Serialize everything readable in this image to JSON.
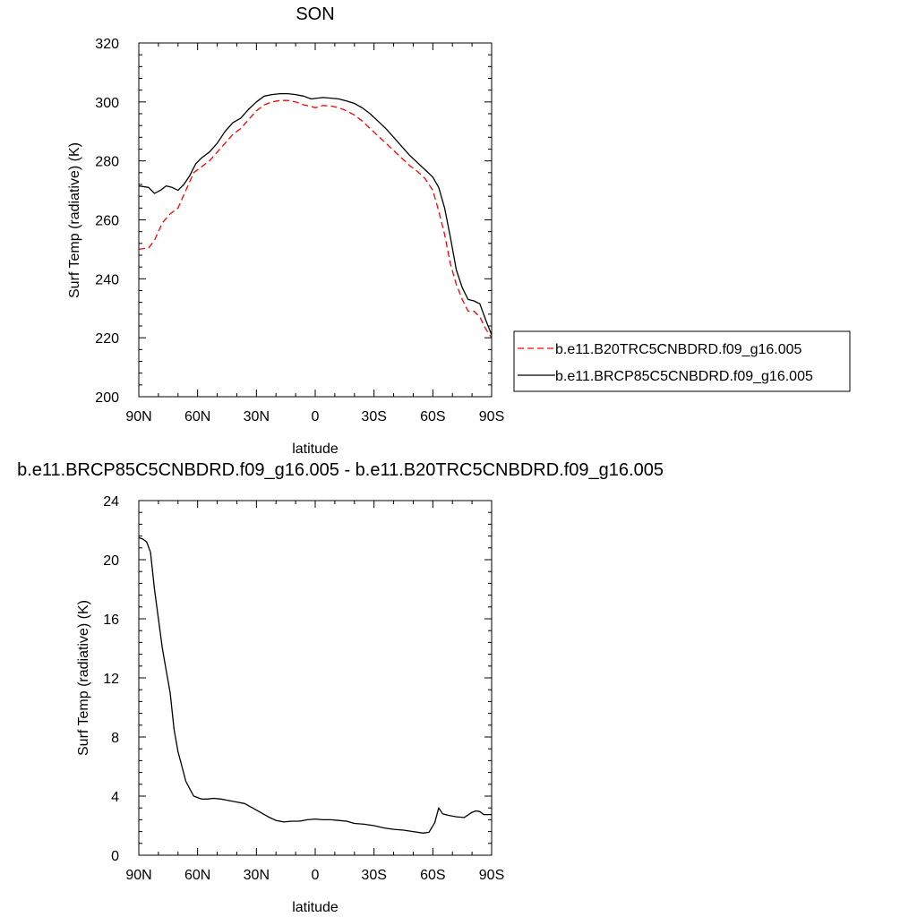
{
  "chart_data": [
    {
      "type": "line",
      "title": "SON",
      "xlabel": "latitude",
      "ylabel": "Surf Temp (radiative) (K)",
      "xlim": [
        90,
        -90
      ],
      "ylim": [
        200,
        320
      ],
      "xticks": [
        90,
        60,
        30,
        0,
        -30,
        -60,
        -90
      ],
      "xtick_labels": [
        "90N",
        "60N",
        "30N",
        "0",
        "30S",
        "60S",
        "90S"
      ],
      "yticks": [
        200,
        220,
        240,
        260,
        280,
        300,
        320
      ],
      "ytick_labels": [
        "200",
        "220",
        "240",
        "260",
        "280",
        "300",
        "320"
      ],
      "grid": false,
      "legend_position": "right",
      "series": [
        {
          "name": "b.e11.B20TRC5CNBDRD.f09_g16.005",
          "color": "#ff0000",
          "dash": "dashed",
          "x": [
            90,
            85,
            82,
            78,
            74,
            70,
            66,
            62,
            58,
            54,
            50,
            46,
            42,
            38,
            34,
            30,
            26,
            22,
            18,
            14,
            10,
            6,
            2,
            0,
            -4,
            -8,
            -12,
            -16,
            -20,
            -24,
            -28,
            -32,
            -36,
            -40,
            -44,
            -48,
            -52,
            -56,
            -60,
            -63,
            -66,
            -69,
            -72,
            -75,
            -78,
            -81,
            -84,
            -87,
            -90
          ],
          "y": [
            250,
            250.5,
            253,
            259,
            262,
            264,
            270,
            276,
            278,
            280,
            283,
            286,
            289,
            291,
            294,
            297,
            299,
            300,
            300.5,
            300.5,
            300,
            299,
            298.5,
            298,
            298.8,
            298.6,
            298,
            297,
            295.5,
            293.5,
            291,
            288.5,
            286,
            283.5,
            281,
            278.5,
            276.5,
            274,
            270,
            263,
            255,
            245,
            238,
            233,
            229,
            229,
            227,
            223,
            220
          ]
        },
        {
          "name": "b.e11.BRCP85C5CNBDRD.f09_g16.005",
          "color": "#000000",
          "dash": "solid",
          "x": [
            90,
            85,
            82,
            79,
            76,
            73,
            70,
            67,
            64,
            61,
            58,
            54,
            50,
            46,
            42,
            38,
            34,
            30,
            26,
            22,
            18,
            14,
            10,
            6,
            2,
            0,
            -4,
            -8,
            -12,
            -16,
            -20,
            -24,
            -28,
            -32,
            -36,
            -40,
            -44,
            -48,
            -52,
            -56,
            -60,
            -63,
            -66,
            -69,
            -72,
            -75,
            -78,
            -81,
            -84,
            -87,
            -90
          ],
          "y": [
            271.5,
            271,
            269,
            270,
            271.5,
            271,
            270,
            272,
            275,
            279,
            281,
            283,
            286,
            290,
            293,
            294.5,
            297.5,
            300,
            302,
            302.5,
            302.8,
            302.8,
            302.5,
            302,
            301,
            301.2,
            301.5,
            301.3,
            301,
            300.3,
            299.5,
            298,
            296,
            293.5,
            291,
            288,
            285,
            282,
            279.5,
            277,
            274.5,
            271,
            264,
            254,
            243,
            237,
            233,
            232.5,
            231.5,
            226,
            221
          ]
        }
      ]
    },
    {
      "type": "line",
      "title": "b.e11.BRCP85C5CNBDRD.f09_g16.005 - b.e11.B20TRC5CNBDRD.f09_g16.005",
      "xlabel": "latitude",
      "ylabel": "Surf Temp (radiative) (K)",
      "xlim": [
        90,
        -90
      ],
      "ylim": [
        0,
        24
      ],
      "xticks": [
        90,
        60,
        30,
        0,
        -30,
        -60,
        -90
      ],
      "xtick_labels": [
        "90N",
        "60N",
        "30N",
        "0",
        "30S",
        "60S",
        "90S"
      ],
      "yticks": [
        0,
        4,
        8,
        12,
        16,
        20,
        24
      ],
      "ytick_labels": [
        "0",
        "4",
        "8",
        "12",
        "16",
        "20",
        "24"
      ],
      "grid": false,
      "series": [
        {
          "color": "#000000",
          "dash": "solid",
          "x": [
            90,
            88,
            86,
            84,
            82,
            80,
            78,
            76,
            74,
            72,
            70,
            68,
            66,
            64,
            62,
            60,
            58,
            55,
            52,
            48,
            44,
            40,
            36,
            32,
            28,
            24,
            20,
            16,
            12,
            8,
            4,
            0,
            -4,
            -8,
            -12,
            -16,
            -20,
            -25,
            -30,
            -35,
            -40,
            -45,
            -50,
            -55,
            -58,
            -61,
            -63,
            -65,
            -68,
            -72,
            -76,
            -80,
            -82,
            -84,
            -86,
            -88,
            -90
          ],
          "y": [
            21.5,
            21.4,
            21.2,
            20.5,
            18,
            16,
            14,
            12.5,
            11,
            8.5,
            7,
            6,
            5,
            4.5,
            4,
            3.9,
            3.8,
            3.8,
            3.85,
            3.8,
            3.7,
            3.6,
            3.5,
            3.2,
            2.9,
            2.6,
            2.35,
            2.25,
            2.3,
            2.3,
            2.4,
            2.45,
            2.4,
            2.4,
            2.35,
            2.3,
            2.15,
            2.1,
            2.0,
            1.85,
            1.75,
            1.7,
            1.6,
            1.5,
            1.55,
            2.2,
            3.2,
            2.8,
            2.7,
            2.6,
            2.55,
            2.9,
            3.0,
            2.95,
            2.75,
            2.75,
            2.75
          ]
        }
      ]
    }
  ]
}
